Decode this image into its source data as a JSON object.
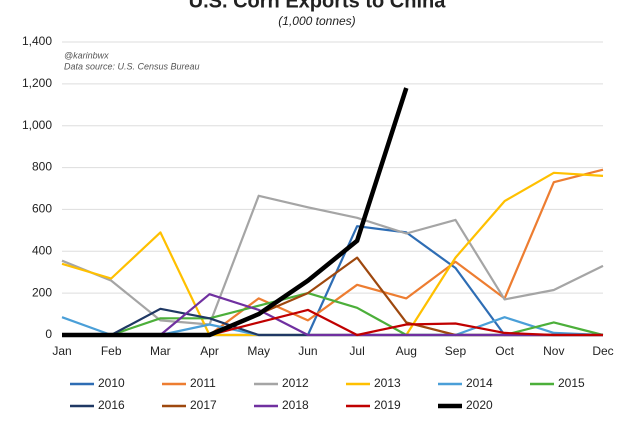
{
  "chart_data": {
    "type": "line",
    "title": "U.S. Corn Exports to China",
    "subtitle": "(1,000 tonnes)",
    "annotations": [
      "@karinbwx",
      "Data source: U.S. Census Bureau"
    ],
    "categories": [
      "Jan",
      "Feb",
      "Mar",
      "Apr",
      "May",
      "Jun",
      "Jul",
      "Aug",
      "Sep",
      "Oct",
      "Nov",
      "Dec"
    ],
    "ylim": [
      0,
      1400
    ],
    "yticks": [
      0,
      200,
      400,
      600,
      800,
      {
        "value": 1000,
        "label": "1,000"
      },
      {
        "value": 1200,
        "label": "1,200"
      },
      {
        "value": 1400,
        "label": "1,400"
      }
    ],
    "grid": true,
    "legend": "bottom",
    "series": [
      {
        "name": "2010",
        "color": "#2e6db4",
        "values": [
          0,
          0,
          0,
          0,
          0,
          0,
          520,
          490,
          320,
          0,
          0,
          0
        ]
      },
      {
        "name": "2011",
        "color": "#ed7d31",
        "values": [
          0,
          0,
          0,
          0,
          175,
          70,
          240,
          175,
          350,
          175,
          730,
          790
        ]
      },
      {
        "name": "2012",
        "color": "#a5a5a5",
        "values": [
          355,
          260,
          70,
          50,
          665,
          610,
          560,
          485,
          550,
          170,
          215,
          330
        ]
      },
      {
        "name": "2013",
        "color": "#ffc000",
        "values": [
          340,
          270,
          490,
          0,
          0,
          0,
          0,
          0,
          370,
          640,
          775,
          760
        ]
      },
      {
        "name": "2014",
        "color": "#4a9fd8",
        "values": [
          85,
          0,
          0,
          50,
          0,
          0,
          0,
          0,
          0,
          85,
          10,
          0
        ]
      },
      {
        "name": "2015",
        "color": "#4caf3a",
        "values": [
          0,
          0,
          80,
          80,
          140,
          200,
          130,
          0,
          0,
          0,
          60,
          0
        ]
      },
      {
        "name": "2016",
        "color": "#1f3864",
        "values": [
          0,
          0,
          125,
          80,
          0,
          0,
          0,
          0,
          0,
          0,
          0,
          0
        ]
      },
      {
        "name": "2017",
        "color": "#9e480e",
        "values": [
          0,
          0,
          0,
          0,
          100,
          200,
          370,
          60,
          0,
          0,
          0,
          0
        ]
      },
      {
        "name": "2018",
        "color": "#7030a0",
        "values": [
          0,
          0,
          0,
          195,
          120,
          0,
          0,
          0,
          0,
          0,
          0,
          0
        ]
      },
      {
        "name": "2019",
        "color": "#c00000",
        "values": [
          0,
          0,
          0,
          0,
          60,
          120,
          0,
          50,
          55,
          10,
          0,
          0
        ]
      },
      {
        "name": "2020",
        "color": "#000000",
        "values": [
          0,
          0,
          0,
          0,
          100,
          260,
          450,
          1180,
          null,
          null,
          null,
          null
        ]
      }
    ]
  }
}
